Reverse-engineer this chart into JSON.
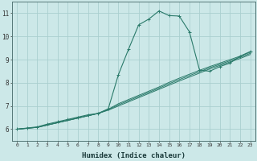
{
  "xlabel": "Humidex (Indice chaleur)",
  "bg_color": "#cce8e8",
  "grid_color": "#aacfcf",
  "line_color": "#2a7a6a",
  "xlim": [
    -0.5,
    23.5
  ],
  "ylim": [
    5.5,
    11.5
  ],
  "xticks": [
    0,
    1,
    2,
    3,
    4,
    5,
    6,
    7,
    8,
    9,
    10,
    11,
    12,
    13,
    14,
    15,
    16,
    17,
    18,
    19,
    20,
    21,
    22,
    23
  ],
  "yticks": [
    6,
    7,
    8,
    9,
    10,
    11
  ],
  "line1_x": [
    0,
    1,
    2,
    3,
    4,
    5,
    6,
    7,
    8,
    9,
    10,
    11,
    12,
    13,
    14,
    15,
    16,
    17,
    18,
    19,
    20,
    21,
    22,
    23
  ],
  "line1_y": [
    6.0,
    6.05,
    6.1,
    6.22,
    6.32,
    6.42,
    6.52,
    6.62,
    6.68,
    6.88,
    8.35,
    9.45,
    10.5,
    10.75,
    11.1,
    10.9,
    10.88,
    10.2,
    8.55,
    8.5,
    8.7,
    8.85,
    9.15,
    9.35
  ],
  "line2_x": [
    0,
    1,
    2,
    3,
    4,
    5,
    6,
    7,
    8,
    9,
    10,
    11,
    12,
    13,
    14,
    15,
    16,
    17,
    18,
    19,
    20,
    21,
    22,
    23
  ],
  "line2_y": [
    6.0,
    6.04,
    6.08,
    6.18,
    6.28,
    6.38,
    6.48,
    6.58,
    6.68,
    6.82,
    7.0,
    7.18,
    7.36,
    7.54,
    7.72,
    7.9,
    8.08,
    8.25,
    8.42,
    8.6,
    8.75,
    8.9,
    9.05,
    9.22
  ],
  "line3_x": [
    0,
    1,
    2,
    3,
    4,
    5,
    6,
    7,
    8,
    9,
    10,
    11,
    12,
    13,
    14,
    15,
    16,
    17,
    18,
    19,
    20,
    21,
    22,
    23
  ],
  "line3_y": [
    6.0,
    6.04,
    6.08,
    6.18,
    6.28,
    6.38,
    6.48,
    6.58,
    6.68,
    6.84,
    7.05,
    7.23,
    7.41,
    7.59,
    7.77,
    7.96,
    8.14,
    8.31,
    8.48,
    8.65,
    8.8,
    8.95,
    9.1,
    9.27
  ],
  "line4_x": [
    0,
    1,
    2,
    3,
    4,
    5,
    6,
    7,
    8,
    9,
    10,
    11,
    12,
    13,
    14,
    15,
    16,
    17,
    18,
    19,
    20,
    21,
    22,
    23
  ],
  "line4_y": [
    6.0,
    6.04,
    6.08,
    6.18,
    6.28,
    6.38,
    6.48,
    6.58,
    6.68,
    6.86,
    7.1,
    7.28,
    7.46,
    7.64,
    7.82,
    8.02,
    8.2,
    8.37,
    8.54,
    8.7,
    8.85,
    9.0,
    9.15,
    9.32
  ]
}
